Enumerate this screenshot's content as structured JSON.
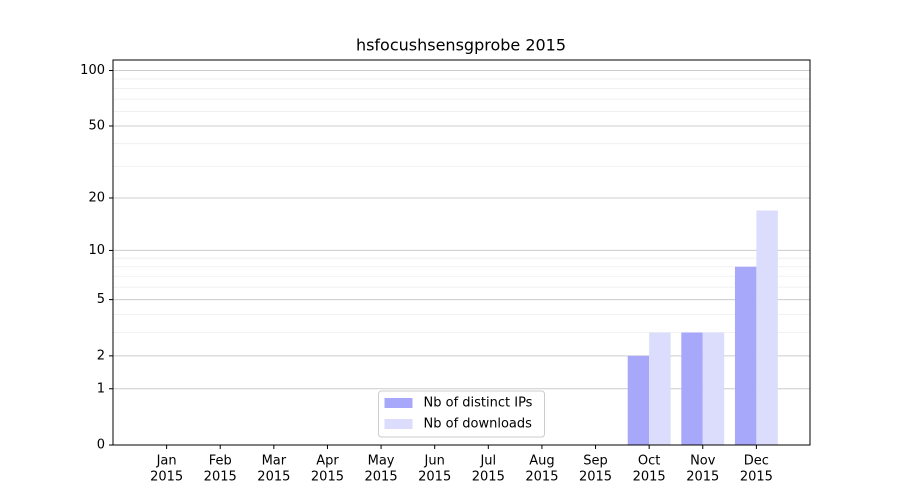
{
  "chart_data": {
    "type": "bar",
    "title": "hsfocushsensgprobe 2015",
    "categories": [
      [
        "Jan",
        "2015"
      ],
      [
        "Feb",
        "2015"
      ],
      [
        "Mar",
        "2015"
      ],
      [
        "Apr",
        "2015"
      ],
      [
        "May",
        "2015"
      ],
      [
        "Jun",
        "2015"
      ],
      [
        "Jul",
        "2015"
      ],
      [
        "Aug",
        "2015"
      ],
      [
        "Sep",
        "2015"
      ],
      [
        "Oct",
        "2015"
      ],
      [
        "Nov",
        "2015"
      ],
      [
        "Dec",
        "2015"
      ]
    ],
    "series": [
      {
        "name": "Nb of distinct IPs",
        "color": "#a8a8fa",
        "values": [
          0,
          0,
          0,
          0,
          0,
          0,
          0,
          0,
          0,
          2,
          3,
          8
        ]
      },
      {
        "name": "Nb of downloads",
        "color": "#dcdcfc",
        "values": [
          0,
          0,
          0,
          0,
          0,
          0,
          0,
          0,
          0,
          3,
          3,
          17
        ]
      }
    ],
    "yscale": "log1p",
    "ylim": [
      0,
      114
    ],
    "yticks": [
      0,
      1,
      2,
      5,
      10,
      20,
      50,
      100
    ],
    "yminorticks": [
      3,
      4,
      6,
      7,
      8,
      9,
      30,
      40,
      60,
      70,
      80,
      90
    ],
    "grid": true,
    "legend": "lower center"
  }
}
